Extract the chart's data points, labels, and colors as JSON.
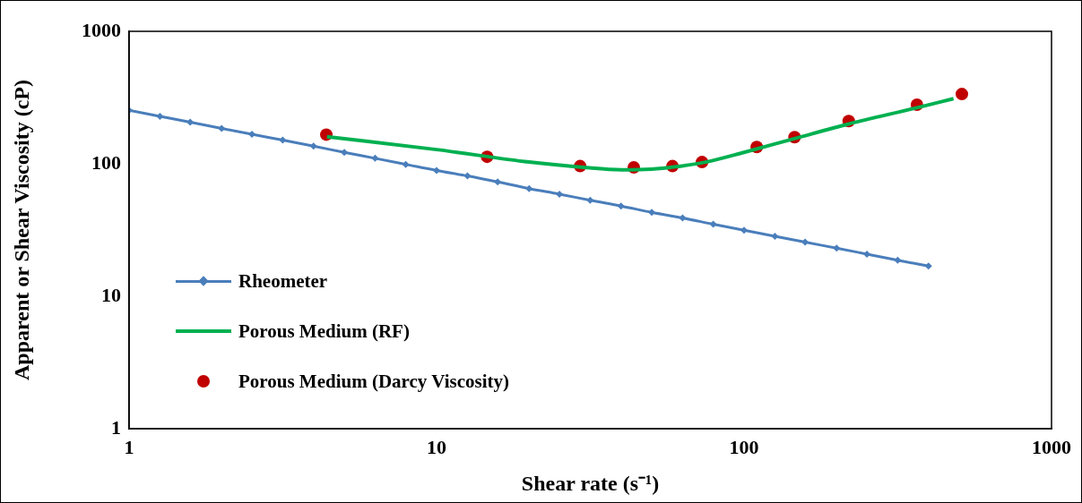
{
  "chart_data": {
    "type": "line",
    "xlabel": "Shear rate (s⁻¹)",
    "ylabel": "Apparent or Shear Viscosity (cP)",
    "log": "xy",
    "xlim": [
      1,
      1000
    ],
    "xticks": [
      1,
      10,
      100,
      1000
    ],
    "ylim": [
      1,
      1000
    ],
    "yticks": [
      1,
      10,
      100,
      1000
    ],
    "grid": false,
    "legend": "bottom left",
    "series": [
      {
        "name": "Rheometer",
        "marker": "diamond",
        "color": "#4a7ebb",
        "x": [
          1,
          1.26,
          1.58,
          2,
          2.51,
          3.16,
          3.98,
          5.01,
          6.31,
          7.94,
          10,
          12.6,
          15.8,
          20,
          25.1,
          31.6,
          39.8,
          50.1,
          63.1,
          79.4,
          100,
          126,
          158,
          200,
          251,
          316,
          398
        ],
        "values": [
          253,
          228,
          206,
          185,
          167,
          151,
          136,
          122,
          110,
          99,
          89,
          81,
          73,
          65,
          59,
          53,
          48,
          43,
          39,
          35,
          31.5,
          28.4,
          25.6,
          23.1,
          20.8,
          18.7,
          16.9
        ]
      },
      {
        "name": "Porous Medium (RF)",
        "marker": "none",
        "color": "#00b050",
        "x": [
          4.4,
          10,
          20,
          30,
          40,
          50,
          60,
          75,
          100,
          146,
          219,
          365,
          480
        ],
        "values": [
          160,
          128,
          103,
          94,
          90,
          91,
          95,
          103,
          122,
          155,
          200,
          265,
          310
        ]
      },
      {
        "name": "Porous Medium (Darcy Viscosity)",
        "type": "scatter",
        "marker": "circle",
        "color": "#c00000",
        "x": [
          4.38,
          14.6,
          29.3,
          43.8,
          58.5,
          73,
          110,
          146,
          219,
          365,
          511
        ],
        "values": [
          166,
          113,
          96,
          94,
          96,
          103,
          134,
          159,
          210,
          279,
          336
        ]
      }
    ]
  }
}
